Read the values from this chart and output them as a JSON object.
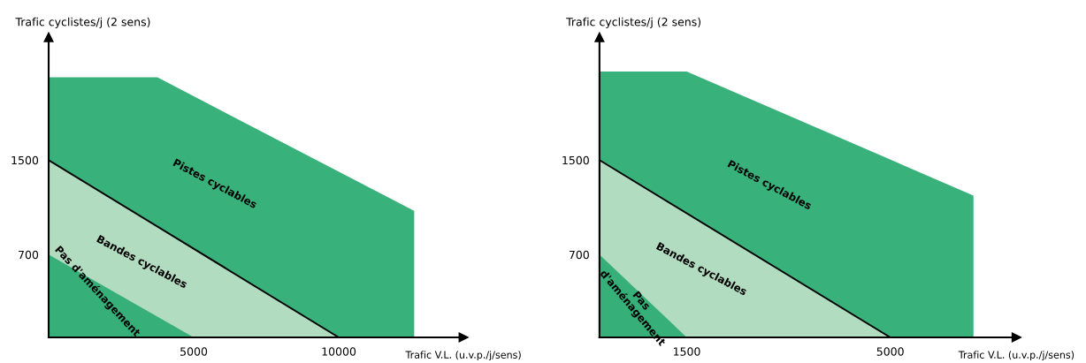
{
  "chart_data": [
    {
      "type": "area",
      "xlabel": "Trafic V.L. (u.v.p./j/sens)",
      "ylabel": "Trafic cyclistes/j (2 sens)",
      "xlim": [
        0,
        14300
      ],
      "ylim": [
        0,
        2540
      ],
      "xticks": [
        5000,
        10000
      ],
      "yticks": [
        700,
        1500
      ],
      "grid": false,
      "legend": false,
      "series": [
        {
          "color": "#38b27a",
          "x": [
            0,
            3750,
            12600,
            12600
          ],
          "values": [
            2200,
            2200,
            1070,
            0
          ]
        },
        {
          "color": "#b2dcc0",
          "line_style": "solid",
          "x": [
            0,
            10000
          ],
          "values": [
            1500,
            0
          ]
        },
        {
          "color": "#36b078",
          "x": [
            0,
            5000
          ],
          "values": [
            700,
            0
          ]
        }
      ],
      "annotations": [
        "Pistes cyclables",
        "Bandes cyclables",
        "Pas d'aménagement"
      ]
    },
    {
      "type": "area",
      "xlabel": "Trafic V.L. (u.v.p./j/sens)",
      "ylabel": "Trafic cyclistes/j (2 sens)",
      "xlim": [
        0,
        7170
      ],
      "ylim": [
        0,
        2540
      ],
      "xticks": [
        1500,
        5000
      ],
      "yticks": [
        700,
        1500
      ],
      "grid": false,
      "legend": false,
      "series": [
        {
          "color": "#38b27a",
          "x": [
            0,
            1500,
            6430,
            6430
          ],
          "values": [
            2250,
            2250,
            1200,
            0
          ]
        },
        {
          "color": "#b2dcc0",
          "line_style": "solid",
          "x": [
            0,
            5000
          ],
          "values": [
            1500,
            0
          ]
        },
        {
          "color": "#36b078",
          "x": [
            0,
            1500
          ],
          "values": [
            700,
            0
          ]
        }
      ],
      "annotations": [
        "Pistes cyclables",
        "Bandes cyclables",
        "Pas\nd'aménagement"
      ]
    }
  ]
}
